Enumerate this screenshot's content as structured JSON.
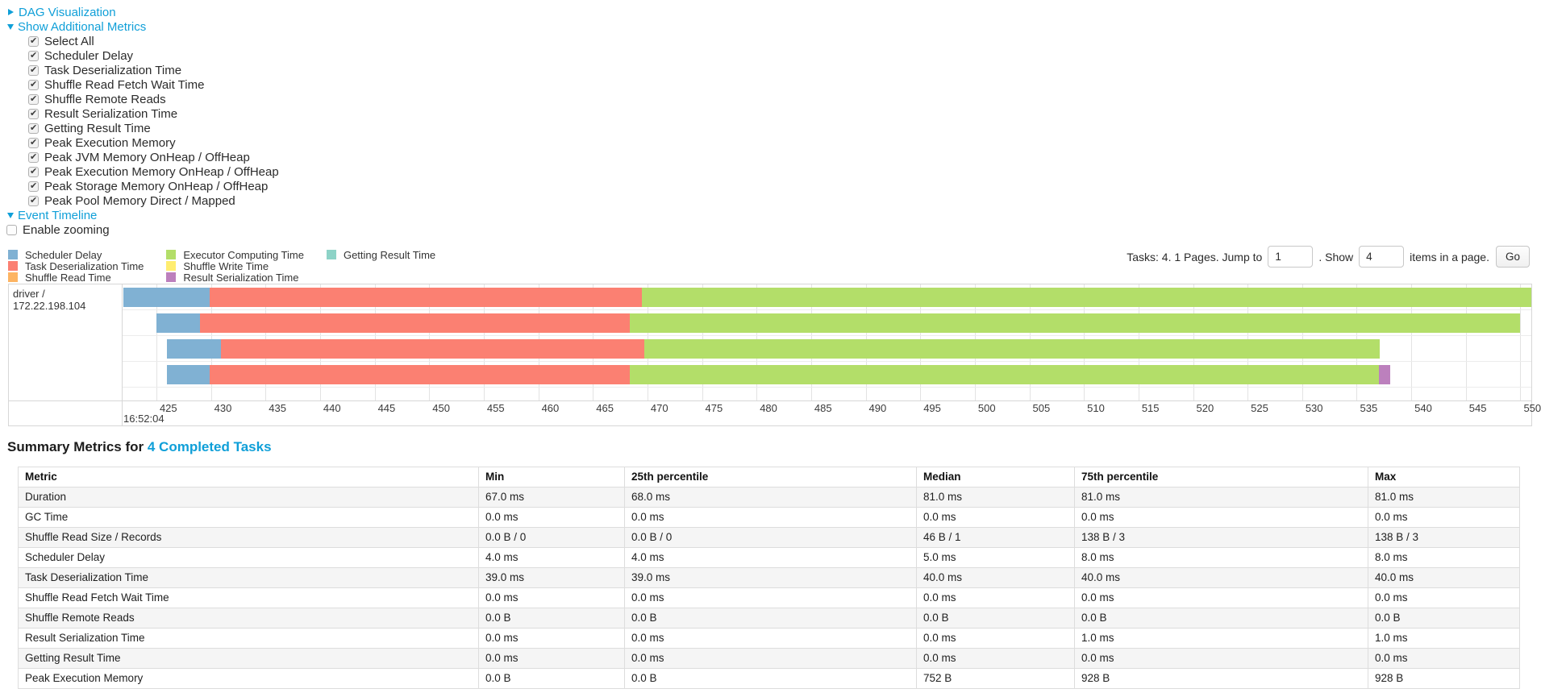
{
  "link_color": "#0f9fd8",
  "sections": {
    "dag": {
      "label": "DAG Visualization",
      "state": "collapsed"
    },
    "metrics_toggle": {
      "label": "Show Additional Metrics",
      "state": "expanded"
    },
    "event_timeline": {
      "label": "Event Timeline",
      "state": "expanded"
    }
  },
  "metrics_panel": {
    "items": [
      "Select All",
      "Scheduler Delay",
      "Task Deserialization Time",
      "Shuffle Read Fetch Wait Time",
      "Shuffle Remote Reads",
      "Result Serialization Time",
      "Getting Result Time",
      "Peak Execution Memory",
      "Peak JVM Memory OnHeap / OffHeap",
      "Peak Execution Memory OnHeap / OffHeap",
      "Peak Storage Memory OnHeap / OffHeap",
      "Peak Pool Memory Direct / Mapped"
    ],
    "all_checked": true
  },
  "enable_zooming": {
    "label": "Enable zooming",
    "checked": false
  },
  "timeline": {
    "legend": [
      {
        "key": "scheduler_delay",
        "label": "Scheduler Delay",
        "color": "#80B1D3"
      },
      {
        "key": "task_deserialization",
        "label": "Task Deserialization Time",
        "color": "#FB8072"
      },
      {
        "key": "shuffle_read",
        "label": "Shuffle Read Time",
        "color": "#FDB462"
      },
      {
        "key": "executor_computing",
        "label": "Executor Computing Time",
        "color": "#B3DE69"
      },
      {
        "key": "shuffle_write",
        "label": "Shuffle Write Time",
        "color": "#FFED6F"
      },
      {
        "key": "result_serialization",
        "label": "Result Serialization Time",
        "color": "#BC80BD"
      },
      {
        "key": "getting_result",
        "label": "Getting Result Time",
        "color": "#8DD3C7"
      }
    ]
  },
  "pagination": {
    "prefix": "Tasks: 4. 1 Pages. Jump to",
    "jump_value": "1",
    "middle": ". Show",
    "show_value": "4",
    "suffix": "items in a page.",
    "go_label": "Go"
  },
  "chart_data": {
    "type": "timeline-gantt",
    "group_label": "driver / 172.22.198.104",
    "axis": {
      "start": 421.9,
      "end": 551.0,
      "tick_start": 425,
      "tick_end": 550,
      "tick_step": 5,
      "time_label": "16:52:04",
      "units": "milliseconds within 16:52:04"
    },
    "tasks": [
      {
        "segments": [
          {
            "name": "scheduler_delay",
            "from": 422.0,
            "to": 429.9
          },
          {
            "name": "task_deserialization",
            "from": 429.9,
            "to": 469.5
          },
          {
            "name": "executor_computing",
            "from": 469.5,
            "to": 551.0
          }
        ]
      },
      {
        "segments": [
          {
            "name": "scheduler_delay",
            "from": 425.0,
            "to": 429.0
          },
          {
            "name": "task_deserialization",
            "from": 429.0,
            "to": 468.4
          },
          {
            "name": "executor_computing",
            "from": 468.4,
            "to": 550.0
          }
        ]
      },
      {
        "segments": [
          {
            "name": "scheduler_delay",
            "from": 426.0,
            "to": 430.9
          },
          {
            "name": "task_deserialization",
            "from": 430.9,
            "to": 469.7
          },
          {
            "name": "executor_computing",
            "from": 469.7,
            "to": 537.1
          }
        ]
      },
      {
        "segments": [
          {
            "name": "scheduler_delay",
            "from": 426.0,
            "to": 429.9
          },
          {
            "name": "task_deserialization",
            "from": 429.9,
            "to": 468.4
          },
          {
            "name": "executor_computing",
            "from": 468.4,
            "to": 537.0
          },
          {
            "name": "result_serialization",
            "from": 537.0,
            "to": 538.1
          }
        ]
      }
    ]
  },
  "summary": {
    "heading_prefix": "Summary Metrics for",
    "heading_link": "4 Completed Tasks",
    "columns": [
      "Metric",
      "Min",
      "25th percentile",
      "Median",
      "75th percentile",
      "Max"
    ],
    "rows": [
      [
        "Duration",
        "67.0 ms",
        "68.0 ms",
        "81.0 ms",
        "81.0 ms",
        "81.0 ms"
      ],
      [
        "GC Time",
        "0.0 ms",
        "0.0 ms",
        "0.0 ms",
        "0.0 ms",
        "0.0 ms"
      ],
      [
        "Shuffle Read Size / Records",
        "0.0 B / 0",
        "0.0 B / 0",
        "46 B / 1",
        "138 B / 3",
        "138 B / 3"
      ],
      [
        "Scheduler Delay",
        "4.0 ms",
        "4.0 ms",
        "5.0 ms",
        "8.0 ms",
        "8.0 ms"
      ],
      [
        "Task Deserialization Time",
        "39.0 ms",
        "39.0 ms",
        "40.0 ms",
        "40.0 ms",
        "40.0 ms"
      ],
      [
        "Shuffle Read Fetch Wait Time",
        "0.0 ms",
        "0.0 ms",
        "0.0 ms",
        "0.0 ms",
        "0.0 ms"
      ],
      [
        "Shuffle Remote Reads",
        "0.0 B",
        "0.0 B",
        "0.0 B",
        "0.0 B",
        "0.0 B"
      ],
      [
        "Result Serialization Time",
        "0.0 ms",
        "0.0 ms",
        "0.0 ms",
        "1.0 ms",
        "1.0 ms"
      ],
      [
        "Getting Result Time",
        "0.0 ms",
        "0.0 ms",
        "0.0 ms",
        "0.0 ms",
        "0.0 ms"
      ],
      [
        "Peak Execution Memory",
        "0.0 B",
        "0.0 B",
        "752 B",
        "928 B",
        "928 B"
      ]
    ]
  }
}
